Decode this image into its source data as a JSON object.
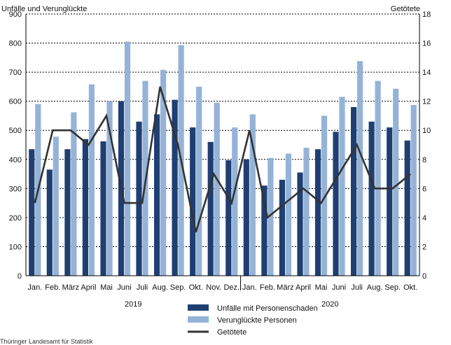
{
  "chart_data": {
    "type": "bar",
    "left_axis_title": "Unfälle und Verunglückte",
    "right_axis_title": "Getötete",
    "ylim": [
      0,
      900
    ],
    "y2lim": [
      0,
      18
    ],
    "y_ticks": [
      "0",
      "100",
      "200",
      "300",
      "400",
      "500",
      "600",
      "700",
      "800",
      "900"
    ],
    "y2_ticks": [
      "0",
      "2",
      "4",
      "6",
      "8",
      "10",
      "12",
      "14",
      "16",
      "18"
    ],
    "categories": [
      "Jan.",
      "Feb.",
      "März",
      "April",
      "Mai",
      "Juni",
      "Juli",
      "Aug.",
      "Sep.",
      "Okt.",
      "Nov.",
      "Dez.",
      "Jan.",
      "Feb.",
      "März",
      "April",
      "Mai",
      "Juni",
      "Juli",
      "Aug.",
      "Sep.",
      "Okt."
    ],
    "years": [
      {
        "label": "2019",
        "start": 0,
        "end": 11
      },
      {
        "label": "2020",
        "start": 12,
        "end": 21
      }
    ],
    "series": [
      {
        "name": "Unfälle mit Personenschaden",
        "kind": "bar",
        "color": "#1f3f73",
        "values": [
          435,
          365,
          435,
          470,
          462,
          600,
          530,
          555,
          605,
          510,
          460,
          397,
          400,
          310,
          330,
          355,
          435,
          495,
          580,
          530,
          510,
          465
        ]
      },
      {
        "name": "Verunglückte Personen",
        "kind": "bar",
        "color": "#95b3d7",
        "values": [
          590,
          478,
          562,
          658,
          600,
          805,
          670,
          708,
          793,
          650,
          595,
          510,
          555,
          405,
          420,
          440,
          550,
          615,
          738,
          670,
          643,
          587
        ]
      },
      {
        "name": "Getötete",
        "kind": "line",
        "axis": "right",
        "color": "#333333",
        "values": [
          5,
          10,
          10,
          9,
          11,
          5,
          5,
          13,
          9,
          3,
          7,
          5,
          10,
          4,
          5,
          6,
          5,
          7,
          9,
          6,
          6,
          7
        ]
      }
    ],
    "grid": true,
    "legend_position": "bottom-center"
  },
  "source_text": "Thüringer Landesamt für Statistik"
}
